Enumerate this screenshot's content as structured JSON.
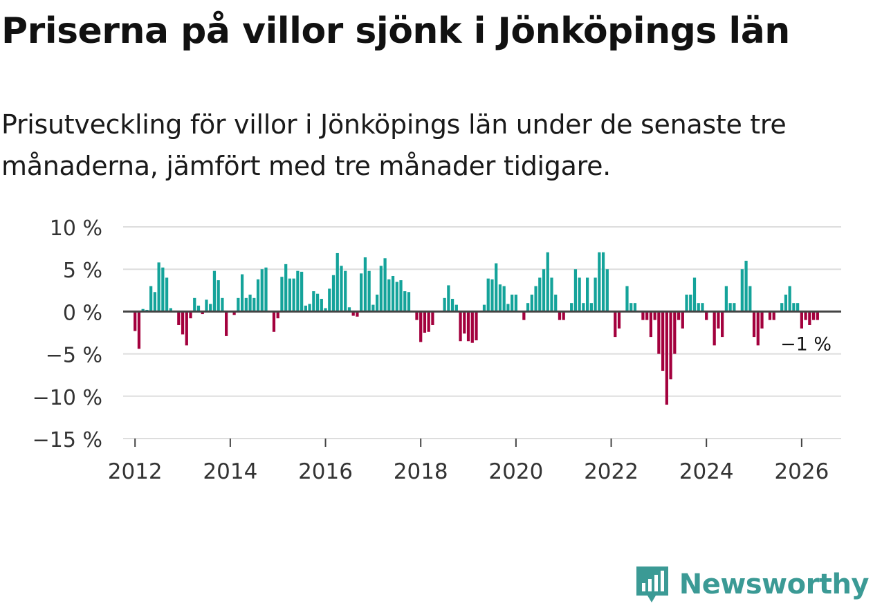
{
  "title": "Priserna på villor sjönk i Jönköpings län",
  "subtitle": "Prisutveckling för villor i Jönköpings län under de senaste tre månaderna, jämfört med tre månader tidigare.",
  "brand": "Newsworthy",
  "colors": {
    "positive": "#14a39a",
    "negative": "#a3003d",
    "grid": "#dddddd",
    "zero": "#444444",
    "text": "#333333",
    "brand": "#3b9a95"
  },
  "chart_data": {
    "type": "bar",
    "title": "Priserna på villor sjönk i Jönköpings län",
    "xlabel": "",
    "ylabel": "",
    "ylim": [
      -15,
      10
    ],
    "yticks": [
      10,
      5,
      0,
      -5,
      -10,
      -15
    ],
    "ytick_labels": [
      "10 %",
      "5 %",
      "0 %",
      "−5 %",
      "−10 %",
      "−15 %"
    ],
    "xlim": [
      2011.75,
      2026.83
    ],
    "xticks": [
      2012,
      2014,
      2016,
      2018,
      2020,
      2022,
      2024,
      2026
    ],
    "xtick_labels": [
      "2012",
      "2014",
      "2016",
      "2018",
      "2020",
      "2022",
      "2024",
      "2026"
    ],
    "start": "2012-01",
    "unit": "%",
    "annotation": {
      "text": "−1 %",
      "value": -1
    },
    "values": [
      -2.3,
      -4.4,
      0.3,
      0.2,
      3.0,
      2.3,
      5.8,
      5.2,
      4.0,
      0.4,
      0.0,
      -1.6,
      -2.7,
      -4.0,
      -0.8,
      1.6,
      0.7,
      -0.3,
      1.4,
      0.9,
      4.8,
      3.7,
      1.6,
      -2.9,
      0.0,
      -0.4,
      1.6,
      4.4,
      1.6,
      2.0,
      1.6,
      3.8,
      5.0,
      5.2,
      0.0,
      -2.4,
      -0.8,
      4.1,
      5.6,
      3.9,
      3.9,
      4.8,
      4.7,
      0.7,
      0.9,
      2.4,
      2.1,
      1.5,
      0.4,
      2.7,
      4.3,
      6.9,
      5.4,
      4.8,
      0.5,
      -0.5,
      -0.6,
      4.5,
      6.4,
      4.8,
      0.8,
      2.0,
      5.4,
      6.3,
      3.8,
      4.2,
      3.5,
      3.7,
      2.4,
      2.3,
      0.0,
      -1.0,
      -3.6,
      -2.5,
      -2.4,
      -1.6,
      0.0,
      0.0,
      1.6,
      3.1,
      1.5,
      0.8,
      -3.5,
      -2.6,
      -3.5,
      -3.7,
      -3.4,
      0.0,
      0.8,
      3.9,
      3.8,
      5.7,
      3.2,
      3.0,
      0.9,
      2.0,
      2.0,
      0.0,
      -1.0,
      1.0,
      2.0,
      3.0,
      4.0,
      5.0,
      7.0,
      4.0,
      2.0,
      -1.0,
      -1.0,
      0.0,
      1.0,
      5.0,
      4.0,
      1.0,
      4.0,
      1.0,
      4.0,
      7.0,
      7.0,
      5.0,
      0.0,
      -3.0,
      -2.0,
      0.0,
      3.0,
      1.0,
      1.0,
      0.0,
      -1.0,
      -1.0,
      -3.0,
      -1.0,
      -5.0,
      -7.0,
      -11.0,
      -8.0,
      -5.0,
      -1.0,
      -2.0,
      2.0,
      2.0,
      4.0,
      1.0,
      1.0,
      -1.0,
      0.0,
      -4.0,
      -2.0,
      -3.0,
      3.0,
      1.0,
      1.0,
      0.0,
      5.0,
      6.0,
      3.0,
      -3.0,
      -4.0,
      -2.0,
      0.0,
      -1.0,
      -1.0,
      0.0,
      1.0,
      2.0,
      3.0,
      1.0,
      1.0,
      -2.0,
      -1.0,
      -1.6,
      -1.0,
      -1.0
    ]
  }
}
